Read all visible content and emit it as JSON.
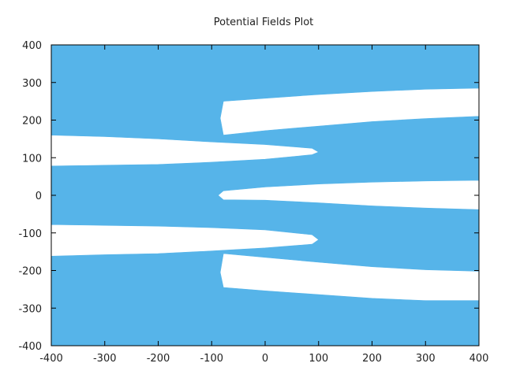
{
  "chart_data": {
    "type": "area",
    "title": "Potential Fields Plot",
    "xlabel": "",
    "ylabel": "",
    "xlim": [
      -400,
      400
    ],
    "ylim": [
      -400,
      400
    ],
    "xticks": [
      -400,
      -300,
      -200,
      -100,
      0,
      100,
      200,
      300,
      400
    ],
    "yticks": [
      -400,
      -300,
      -200,
      -100,
      0,
      100,
      200,
      300,
      400
    ],
    "grid": false,
    "legend": "none",
    "fill_color": "#56b4e9",
    "background_color": "#ffffff",
    "gaps": [
      {
        "name": "",
        "points": [
          [
            -78,
            250
          ],
          [
            0,
            258
          ],
          [
            100,
            268
          ],
          [
            200,
            276
          ],
          [
            300,
            282
          ],
          [
            400,
            285
          ],
          [
            400,
            210
          ],
          [
            300,
            204
          ],
          [
            200,
            196
          ],
          [
            100,
            184
          ],
          [
            0,
            172
          ],
          [
            -78,
            160
          ],
          [
            -84,
            205
          ]
        ]
      },
      {
        "name": "",
        "points": [
          [
            -400,
            160
          ],
          [
            -300,
            156
          ],
          [
            -200,
            150
          ],
          [
            -100,
            142
          ],
          [
            0,
            135
          ],
          [
            88,
            125
          ],
          [
            100,
            115
          ],
          [
            88,
            108
          ],
          [
            0,
            96
          ],
          [
            -100,
            88
          ],
          [
            -200,
            82
          ],
          [
            -300,
            80
          ],
          [
            -400,
            78
          ]
        ]
      },
      {
        "name": "",
        "points": [
          [
            -78,
            12
          ],
          [
            0,
            22
          ],
          [
            100,
            30
          ],
          [
            200,
            35
          ],
          [
            300,
            38
          ],
          [
            400,
            40
          ],
          [
            400,
            -38
          ],
          [
            300,
            -34
          ],
          [
            200,
            -28
          ],
          [
            100,
            -20
          ],
          [
            0,
            -13
          ],
          [
            -78,
            -12
          ],
          [
            -88,
            0
          ]
        ]
      },
      {
        "name": "",
        "points": [
          [
            -400,
            -78
          ],
          [
            -300,
            -80
          ],
          [
            -200,
            -82
          ],
          [
            -100,
            -86
          ],
          [
            0,
            -92
          ],
          [
            88,
            -105
          ],
          [
            100,
            -118
          ],
          [
            88,
            -130
          ],
          [
            0,
            -140
          ],
          [
            -100,
            -148
          ],
          [
            -200,
            -155
          ],
          [
            -300,
            -158
          ],
          [
            -400,
            -162
          ]
        ]
      },
      {
        "name": "",
        "points": [
          [
            -78,
            -155
          ],
          [
            0,
            -165
          ],
          [
            100,
            -178
          ],
          [
            200,
            -190
          ],
          [
            300,
            -198
          ],
          [
            400,
            -202
          ],
          [
            400,
            -280
          ],
          [
            300,
            -280
          ],
          [
            200,
            -274
          ],
          [
            100,
            -264
          ],
          [
            0,
            -254
          ],
          [
            -78,
            -245
          ],
          [
            -84,
            -205
          ]
        ]
      }
    ]
  }
}
